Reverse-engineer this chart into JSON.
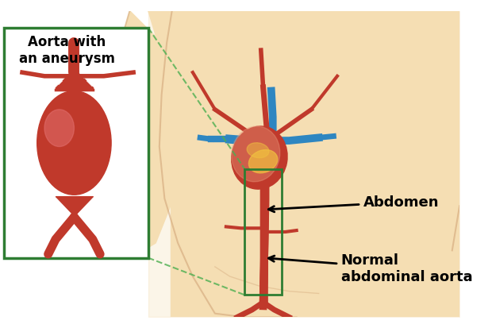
{
  "bg_color": "#FAEBD7",
  "body_skin_color": "#F5DEB3",
  "body_outline_color": "#D2A679",
  "aorta_color": "#C0392B",
  "aorta_dark": "#922B21",
  "vein_color": "#2E86C1",
  "heart_color": "#C0392B",
  "heart_light": "#E8967A",
  "heart_yellow": "#F0C040",
  "green_box_color": "#2E7D32",
  "green_dashed_color": "#4CAF50",
  "white_bg": "#FFFFFF",
  "text_color": "#000000",
  "title_aneurysm": "Aorta with\nan aneurysm",
  "label_abdomen": "Abdomen",
  "label_normal": "Normal\nabdominal aorta"
}
